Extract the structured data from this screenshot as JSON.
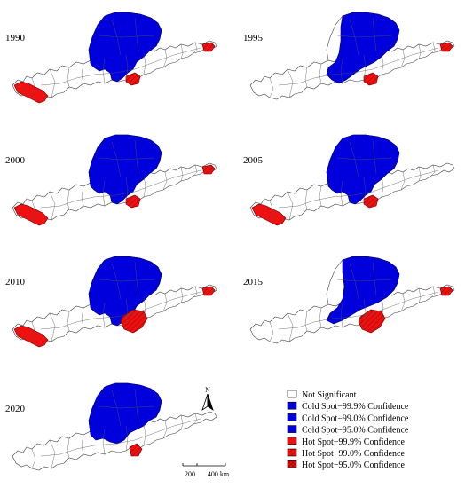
{
  "colors": {
    "cold": "#0000dd",
    "hot": "#ee1111",
    "not_significant": "#ffffff",
    "boundary": "#444444"
  },
  "maps": [
    {
      "year": "1990",
      "hot_spots": [
        {
          "area": "west",
          "level": "99.9"
        },
        {
          "area": "south-central",
          "level": "99.0"
        },
        {
          "area": "east",
          "level": "99.0"
        }
      ]
    },
    {
      "year": "1995",
      "hot_spots": [
        {
          "area": "south-central",
          "level": "99.0"
        },
        {
          "area": "east",
          "level": "99.0"
        }
      ]
    },
    {
      "year": "2000",
      "hot_spots": [
        {
          "area": "west",
          "level": "99.9"
        },
        {
          "area": "south-central",
          "level": "99.0"
        },
        {
          "area": "east",
          "level": "99.0"
        }
      ]
    },
    {
      "year": "2005",
      "hot_spots": [
        {
          "area": "west",
          "level": "99.9"
        },
        {
          "area": "south-central",
          "level": "99.0"
        }
      ]
    },
    {
      "year": "2010",
      "hot_spots": [
        {
          "area": "west",
          "level": "99.9"
        },
        {
          "area": "south-central-large",
          "level": "99.0"
        },
        {
          "area": "east",
          "level": "99.0"
        }
      ]
    },
    {
      "year": "2015",
      "hot_spots": [
        {
          "area": "south-central-large",
          "level": "99.0"
        },
        {
          "area": "east",
          "level": "99.0"
        }
      ]
    },
    {
      "year": "2020",
      "hot_spots": [
        {
          "area": "south-central-small",
          "level": "99.0"
        }
      ]
    }
  ],
  "legend": {
    "items": [
      {
        "label": "Not Significant",
        "swatch": "none"
      },
      {
        "label": "Cold Spot−99.9% Confidence",
        "swatch": "cold"
      },
      {
        "label": "Cold Spot−99.0% Confidence",
        "swatch": "cold"
      },
      {
        "label": "Cold Spot−95.0% Confidence",
        "swatch": "cold"
      },
      {
        "label": "Hot  Spot−99.9% Confidence",
        "swatch": "hot"
      },
      {
        "label": "Hot  Spot−99.0% Confidence",
        "swatch": "hot-hatch"
      },
      {
        "label": "Hot  Spot−95.0% Confidence",
        "swatch": "hot-cross"
      }
    ]
  },
  "scale_bar": {
    "label_mid": "200",
    "label_end": "400 km"
  },
  "north_arrow": {
    "label": "N"
  }
}
